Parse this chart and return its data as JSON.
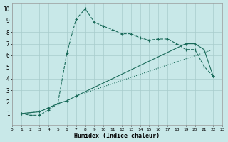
{
  "xlabel": "Humidex (Indice chaleur)",
  "bg_color": "#c8e8e8",
  "grid_color": "#a8cccc",
  "line_color": "#1a6b5a",
  "xlim": [
    0,
    23
  ],
  "ylim": [
    0,
    10.5
  ],
  "xticks": [
    0,
    1,
    2,
    3,
    4,
    5,
    6,
    7,
    8,
    9,
    10,
    11,
    12,
    13,
    14,
    15,
    16,
    17,
    18,
    19,
    20,
    21,
    22,
    23
  ],
  "yticks": [
    1,
    2,
    3,
    4,
    5,
    6,
    7,
    8,
    9,
    10
  ],
  "line1_x": [
    1,
    2,
    3,
    4,
    5,
    6,
    7,
    8,
    9,
    10,
    11,
    12,
    13,
    14,
    15,
    16,
    17,
    18,
    19,
    20,
    21,
    22
  ],
  "line1_y": [
    1.0,
    0.85,
    0.85,
    1.3,
    1.85,
    6.2,
    9.1,
    10.0,
    8.85,
    8.5,
    8.2,
    7.85,
    7.85,
    7.5,
    7.3,
    7.4,
    7.4,
    7.0,
    6.5,
    6.5,
    5.05,
    4.2
  ],
  "line2_x": [
    1,
    3,
    4,
    5,
    6,
    7,
    22
  ],
  "line2_y": [
    1.0,
    1.15,
    1.5,
    1.85,
    2.1,
    2.5,
    6.5
  ],
  "line3_x": [
    1,
    3,
    4,
    5,
    6,
    7,
    19,
    20,
    21,
    22
  ],
  "line3_y": [
    1.0,
    1.15,
    1.5,
    1.85,
    2.1,
    2.5,
    7.0,
    7.0,
    6.5,
    4.2
  ]
}
